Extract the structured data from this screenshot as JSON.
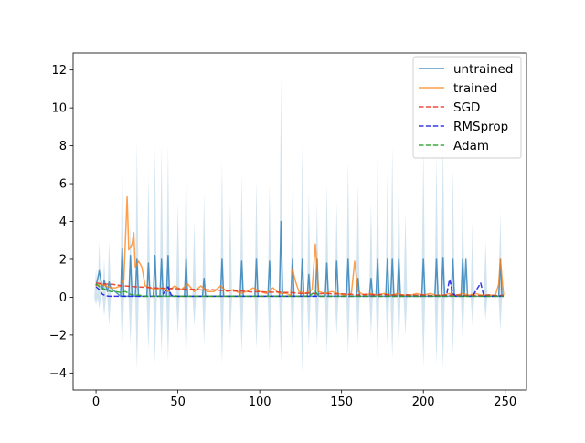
{
  "chart_data": {
    "type": "line",
    "title": "",
    "xlabel": "",
    "ylabel": "",
    "xlim": [
      -14,
      263
    ],
    "ylim": [
      -4.9,
      12.9
    ],
    "xticks": [
      0,
      50,
      100,
      150,
      200,
      250
    ],
    "yticks": [
      -4,
      -2,
      0,
      2,
      4,
      6,
      8,
      10,
      12
    ],
    "xtick_labels": [
      "0",
      "50",
      "100",
      "150",
      "200",
      "250"
    ],
    "ytick_labels": [
      "−4",
      "−2",
      "0",
      "2",
      "4",
      "6",
      "8",
      "10",
      "12"
    ],
    "grid": false,
    "legend_position": "upper right",
    "band": {
      "series": "untrained",
      "color": "#1f77b4",
      "opacity": 0.2,
      "spikes": [
        [
          0,
          -0.4,
          1.5
        ],
        [
          2,
          -0.6,
          3.0
        ],
        [
          5,
          -1.0,
          2.0
        ],
        [
          8,
          -1.5,
          3.0
        ],
        [
          16,
          -3.0,
          8.0
        ],
        [
          21,
          -2.5,
          4.0
        ],
        [
          25,
          -3.8,
          8.2
        ],
        [
          32,
          -2.8,
          6.5
        ],
        [
          36,
          -3.5,
          8.0
        ],
        [
          40,
          -3.0,
          8.0
        ],
        [
          44,
          -3.4,
          8.0
        ],
        [
          50,
          -2.0,
          5.0
        ],
        [
          55,
          -3.8,
          8.0
        ],
        [
          60,
          -1.5,
          4.0
        ],
        [
          66,
          -2.5,
          5.5
        ],
        [
          77,
          -3.5,
          7.2
        ],
        [
          82,
          -2.0,
          5.0
        ],
        [
          89,
          -3.0,
          6.5
        ],
        [
          98,
          -2.7,
          6.2
        ],
        [
          106,
          -3.0,
          6.0
        ],
        [
          113,
          -3.4,
          11.7
        ],
        [
          120,
          -2.8,
          6.0
        ],
        [
          126,
          -4.0,
          8.0
        ],
        [
          130,
          -2.5,
          5.5
        ],
        [
          135,
          -2.5,
          5.0
        ],
        [
          141,
          -3.0,
          6.0
        ],
        [
          147,
          -2.0,
          5.0
        ],
        [
          154,
          -3.0,
          7.2
        ],
        [
          160,
          -2.5,
          6.0
        ],
        [
          168,
          -2.0,
          5.0
        ],
        [
          172,
          -3.5,
          8.0
        ],
        [
          178,
          -2.5,
          6.5
        ],
        [
          181,
          -3.2,
          8.0
        ],
        [
          185,
          -2.8,
          6.8
        ],
        [
          189,
          -2.0,
          4.5
        ],
        [
          200,
          -3.7,
          8.0
        ],
        [
          208,
          -3.5,
          7.5
        ],
        [
          212,
          -3.8,
          8.5
        ],
        [
          218,
          -3.0,
          6.8
        ],
        [
          224,
          -2.5,
          6.0
        ],
        [
          230,
          -1.5,
          4.0
        ],
        [
          238,
          -1.2,
          3.0
        ],
        [
          247,
          -1.8,
          4.5
        ]
      ]
    },
    "series": [
      {
        "name": "untrained",
        "style": "solid",
        "color": "#1f77b4",
        "opacity": 0.75,
        "baseline": 0.05,
        "points": [
          [
            0,
            0.6
          ],
          [
            1,
            1.0
          ],
          [
            2,
            1.4
          ],
          [
            3,
            0.9
          ],
          [
            4,
            0.4
          ],
          [
            5,
            0.9
          ],
          [
            6,
            0.6
          ],
          [
            7,
            0.3
          ],
          [
            8,
            0.8
          ],
          [
            9,
            0.5
          ]
        ],
        "spikes": [
          [
            16,
            2.6
          ],
          [
            21,
            2.2
          ],
          [
            25,
            2.0
          ],
          [
            32,
            1.8
          ],
          [
            36,
            2.2
          ],
          [
            40,
            2.0
          ],
          [
            44,
            2.2
          ],
          [
            55,
            2.0
          ],
          [
            66,
            1.0
          ],
          [
            77,
            2.0
          ],
          [
            89,
            1.9
          ],
          [
            98,
            2.0
          ],
          [
            106,
            1.9
          ],
          [
            113,
            4.0
          ],
          [
            120,
            2.0
          ],
          [
            126,
            2.0
          ],
          [
            130,
            1.2
          ],
          [
            135,
            2.0
          ],
          [
            141,
            1.8
          ],
          [
            147,
            1.9
          ],
          [
            154,
            2.0
          ],
          [
            160,
            1.0
          ],
          [
            168,
            1.0
          ],
          [
            172,
            2.0
          ],
          [
            178,
            2.0
          ],
          [
            181,
            2.0
          ],
          [
            185,
            2.0
          ],
          [
            200,
            2.0
          ],
          [
            208,
            2.0
          ],
          [
            212,
            2.1
          ],
          [
            218,
            2.0
          ],
          [
            224,
            2.0
          ],
          [
            226,
            2.0
          ],
          [
            247,
            2.0
          ]
        ]
      },
      {
        "name": "trained",
        "style": "solid",
        "color": "#ff7f0e",
        "opacity": 0.75,
        "points": [
          [
            0,
            0.6
          ],
          [
            3,
            0.7
          ],
          [
            6,
            0.6
          ],
          [
            9,
            0.5
          ],
          [
            12,
            0.5
          ],
          [
            15,
            0.6
          ],
          [
            17,
            0.9
          ],
          [
            19,
            5.3
          ],
          [
            20,
            2.5
          ],
          [
            22,
            2.8
          ],
          [
            23,
            3.4
          ],
          [
            24,
            1.6
          ],
          [
            26,
            1.9
          ],
          [
            28,
            1.6
          ],
          [
            30,
            0.6
          ],
          [
            33,
            0.5
          ],
          [
            36,
            0.4
          ],
          [
            40,
            0.5
          ],
          [
            44,
            0.3
          ],
          [
            48,
            0.6
          ],
          [
            52,
            0.4
          ],
          [
            56,
            0.7
          ],
          [
            60,
            0.3
          ],
          [
            64,
            0.6
          ],
          [
            68,
            0.3
          ],
          [
            72,
            0.3
          ],
          [
            76,
            0.6
          ],
          [
            80,
            0.3
          ],
          [
            84,
            0.4
          ],
          [
            88,
            0.2
          ],
          [
            92,
            0.3
          ],
          [
            96,
            0.5
          ],
          [
            100,
            0.3
          ],
          [
            104,
            0.2
          ],
          [
            108,
            0.5
          ],
          [
            112,
            0.2
          ],
          [
            116,
            0.2
          ],
          [
            119,
            0.1
          ],
          [
            120,
            1.5
          ],
          [
            122,
            0.8
          ],
          [
            124,
            0.3
          ],
          [
            128,
            0.2
          ],
          [
            132,
            0.4
          ],
          [
            134,
            2.8
          ],
          [
            136,
            0.3
          ],
          [
            140,
            0.2
          ],
          [
            144,
            0.3
          ],
          [
            148,
            0.2
          ],
          [
            152,
            0.1
          ],
          [
            156,
            0.2
          ],
          [
            158,
            1.9
          ],
          [
            160,
            0.3
          ],
          [
            164,
            0.1
          ],
          [
            168,
            0.2
          ],
          [
            172,
            0.1
          ],
          [
            176,
            0.2
          ],
          [
            180,
            0.1
          ],
          [
            184,
            0.2
          ],
          [
            188,
            0.1
          ],
          [
            192,
            0.1
          ],
          [
            196,
            0.2
          ],
          [
            200,
            0.1
          ],
          [
            204,
            0.2
          ],
          [
            208,
            0.1
          ],
          [
            212,
            0.1
          ],
          [
            216,
            0.2
          ],
          [
            220,
            0.1
          ],
          [
            224,
            0.2
          ],
          [
            228,
            0.1
          ],
          [
            232,
            0.2
          ],
          [
            236,
            0.1
          ],
          [
            240,
            0.1
          ],
          [
            244,
            0.1
          ],
          [
            246,
            0.7
          ],
          [
            247,
            2.0
          ],
          [
            249,
            0.1
          ]
        ]
      },
      {
        "name": "SGD",
        "style": "dashed",
        "color": "#e8301b",
        "opacity": 0.85,
        "points": [
          [
            0,
            0.75
          ],
          [
            5,
            0.7
          ],
          [
            10,
            0.68
          ],
          [
            15,
            0.62
          ],
          [
            20,
            0.58
          ],
          [
            25,
            0.55
          ],
          [
            30,
            0.52
          ],
          [
            35,
            0.5
          ],
          [
            40,
            0.48
          ],
          [
            45,
            0.47
          ],
          [
            50,
            0.45
          ],
          [
            55,
            0.42
          ],
          [
            60,
            0.42
          ],
          [
            65,
            0.38
          ],
          [
            70,
            0.4
          ],
          [
            75,
            0.37
          ],
          [
            80,
            0.35
          ],
          [
            85,
            0.33
          ],
          [
            90,
            0.32
          ],
          [
            95,
            0.28
          ],
          [
            100,
            0.3
          ],
          [
            105,
            0.26
          ],
          [
            110,
            0.27
          ],
          [
            115,
            0.25
          ],
          [
            120,
            0.24
          ],
          [
            125,
            0.2
          ],
          [
            130,
            0.22
          ],
          [
            135,
            0.18
          ],
          [
            140,
            0.2
          ],
          [
            145,
            0.17
          ],
          [
            150,
            0.18
          ],
          [
            155,
            0.15
          ],
          [
            160,
            0.12
          ],
          [
            165,
            0.15
          ],
          [
            170,
            0.13
          ],
          [
            175,
            0.15
          ],
          [
            180,
            0.12
          ],
          [
            185,
            0.1
          ],
          [
            190,
            0.13
          ],
          [
            195,
            0.1
          ],
          [
            200,
            0.12
          ],
          [
            205,
            0.08
          ],
          [
            210,
            0.1
          ],
          [
            215,
            0.1
          ],
          [
            220,
            0.12
          ],
          [
            225,
            0.08
          ],
          [
            230,
            0.1
          ],
          [
            235,
            0.08
          ],
          [
            240,
            0.12
          ],
          [
            245,
            0.08
          ],
          [
            249,
            0.1
          ]
        ]
      },
      {
        "name": "RMSprop",
        "style": "dashed",
        "color": "#1515e6",
        "opacity": 0.85,
        "points": [
          [
            0,
            0.55
          ],
          [
            2,
            0.4
          ],
          [
            4,
            0.15
          ],
          [
            6,
            0.08
          ],
          [
            8,
            0.05
          ],
          [
            12,
            0.05
          ],
          [
            16,
            0.05
          ],
          [
            20,
            0.05
          ],
          [
            30,
            0.05
          ],
          [
            40,
            0.05
          ],
          [
            44,
            0.55
          ],
          [
            46,
            0.1
          ],
          [
            50,
            0.05
          ],
          [
            60,
            0.05
          ],
          [
            70,
            0.05
          ],
          [
            80,
            0.05
          ],
          [
            90,
            0.05
          ],
          [
            100,
            0.05
          ],
          [
            110,
            0.05
          ],
          [
            120,
            0.05
          ],
          [
            130,
            0.05
          ],
          [
            140,
            0.05
          ],
          [
            150,
            0.05
          ],
          [
            160,
            0.05
          ],
          [
            170,
            0.05
          ],
          [
            180,
            0.05
          ],
          [
            190,
            0.05
          ],
          [
            200,
            0.05
          ],
          [
            210,
            0.05
          ],
          [
            214,
            0.05
          ],
          [
            216,
            0.95
          ],
          [
            218,
            0.2
          ],
          [
            220,
            0.05
          ],
          [
            230,
            0.05
          ],
          [
            235,
            0.75
          ],
          [
            237,
            0.05
          ],
          [
            240,
            0.05
          ],
          [
            249,
            0.05
          ]
        ]
      },
      {
        "name": "Adam",
        "style": "dashed",
        "color": "#2ca02c",
        "opacity": 0.9,
        "points": [
          [
            0,
            0.7
          ],
          [
            3,
            0.5
          ],
          [
            6,
            0.4
          ],
          [
            9,
            0.3
          ],
          [
            12,
            0.3
          ],
          [
            15,
            0.25
          ],
          [
            18,
            0.3
          ],
          [
            21,
            0.15
          ],
          [
            24,
            0.1
          ],
          [
            27,
            0.1
          ],
          [
            30,
            0.05
          ],
          [
            35,
            0.05
          ],
          [
            40,
            0.05
          ],
          [
            50,
            0.05
          ],
          [
            60,
            0.05
          ],
          [
            70,
            0.05
          ],
          [
            80,
            0.05
          ],
          [
            90,
            0.05
          ],
          [
            100,
            0.05
          ],
          [
            110,
            0.05
          ],
          [
            120,
            0.05
          ],
          [
            130,
            0.05
          ],
          [
            134,
            0.3
          ],
          [
            136,
            0.05
          ],
          [
            150,
            0.05
          ],
          [
            170,
            0.05
          ],
          [
            190,
            0.05
          ],
          [
            210,
            0.05
          ],
          [
            230,
            0.05
          ],
          [
            249,
            0.05
          ]
        ]
      }
    ]
  }
}
